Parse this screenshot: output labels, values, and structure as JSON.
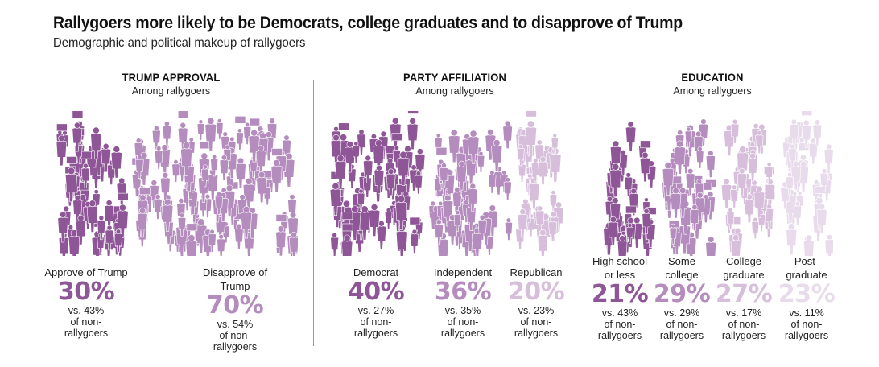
{
  "header": {
    "title": "Rallygoers more likely to be Democrats, college graduates and to disapprove of Trump",
    "subtitle": "Demographic and political makeup of rallygoers"
  },
  "chart_data": [
    {
      "type": "bar",
      "title": "TRUMP APPROVAL",
      "subtitle": "Among rallygoers",
      "categories": [
        "Approve of Trump",
        "Disapprove of Trump"
      ],
      "series": [
        {
          "name": "Rallygoers",
          "values": [
            30,
            70
          ]
        },
        {
          "name": "Non-rallygoers",
          "values": [
            43,
            54
          ]
        }
      ],
      "display_values": [
        "30%",
        "70%"
      ],
      "comparisons": [
        "vs. 43%\nof non-\nrallygoers",
        "vs. 54%\nof non-\nrallygoers"
      ],
      "colors": [
        "#8e5597",
        "#b48cbd"
      ]
    },
    {
      "type": "bar",
      "title": "PARTY AFFILIATION",
      "subtitle": "Among rallygoers",
      "categories": [
        "Democrat",
        "Independent",
        "Republican"
      ],
      "series": [
        {
          "name": "Rallygoers",
          "values": [
            40,
            36,
            20
          ]
        },
        {
          "name": "Non-rallygoers",
          "values": [
            27,
            35,
            23
          ]
        }
      ],
      "display_values": [
        "40%",
        "36%",
        "20%"
      ],
      "comparisons": [
        "vs. 27%\nof non-\nrallygoers",
        "vs. 35%\nof non-\nrallygoers",
        "vs. 23%\nof non-\nrallygoers"
      ],
      "colors": [
        "#8e5597",
        "#b48cbd",
        "#d7bfdc"
      ]
    },
    {
      "type": "bar",
      "title": "EDUCATION",
      "subtitle": "Among rallygoers",
      "categories": [
        "High school\nor less",
        "Some\ncollege",
        "College\ngraduate",
        "Post-\ngraduate"
      ],
      "series": [
        {
          "name": "Rallygoers",
          "values": [
            21,
            29,
            27,
            23
          ]
        },
        {
          "name": "Non-rallygoers",
          "values": [
            43,
            29,
            17,
            11
          ]
        }
      ],
      "display_values": [
        "21%",
        "29%",
        "27%",
        "23%"
      ],
      "comparisons": [
        "vs. 43%\nof non-\nrallygoers",
        "vs. 29%\nof non-\nrallygoers",
        "vs. 17%\nof non-\nrallygoers",
        "vs. 11%\nof non-\nrallygoers"
      ],
      "colors": [
        "#8e5597",
        "#b48cbd",
        "#d7bfdc",
        "#e8dbeb"
      ]
    }
  ]
}
